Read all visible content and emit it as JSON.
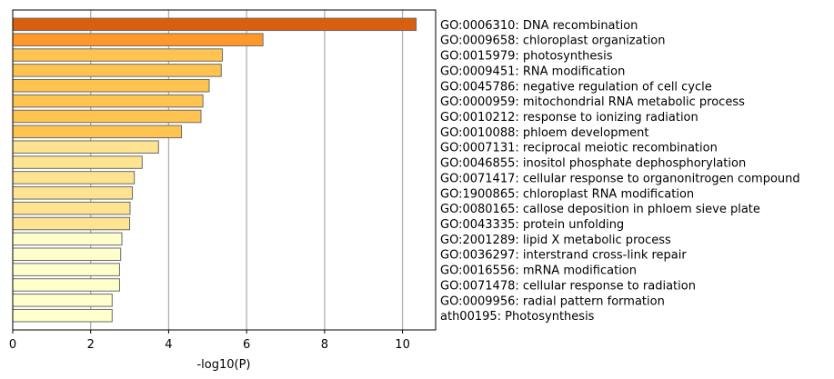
{
  "chart_data": {
    "type": "bar",
    "orientation": "horizontal",
    "title": "",
    "xlabel": "-log10(P)",
    "ylabel": "",
    "xlim": [
      0,
      10.85
    ],
    "xticks": [
      0,
      2,
      4,
      6,
      8,
      10
    ],
    "grid": "vertical",
    "legend": "none",
    "categories": [
      "GO:0006310: DNA recombination",
      "GO:0009658: chloroplast organization",
      "GO:0015979: photosynthesis",
      "GO:0009451: RNA modification",
      "GO:0045786: negative regulation of cell cycle",
      "GO:0000959: mitochondrial RNA metabolic process",
      "GO:0010212: response to ionizing radiation",
      "GO:0010088: phloem development",
      "GO:0007131: reciprocal meiotic recombination",
      "GO:0046855: inositol phosphate dephosphorylation",
      "GO:0071417: cellular response to organonitrogen compound",
      "GO:1900865: chloroplast RNA modification",
      "GO:0080165: callose deposition in phloem sieve plate",
      "GO:0043335: protein unfolding",
      "GO:2001289: lipid X metabolic process",
      "GO:0036297: interstrand cross-link repair",
      "GO:0016556: mRNA modification",
      "GO:0071478: cellular response to radiation",
      "GO:0009956: radial pattern formation",
      "ath00195: Photosynthesis"
    ],
    "values": [
      10.35,
      6.42,
      5.38,
      5.35,
      5.04,
      4.88,
      4.83,
      4.33,
      3.74,
      3.32,
      3.12,
      3.07,
      3.01,
      3.0,
      2.8,
      2.77,
      2.74,
      2.74,
      2.55,
      2.55
    ],
    "colors": [
      "#d95f0e",
      "#fe9929",
      "#fec44f",
      "#fec44f",
      "#fec44f",
      "#fec44f",
      "#fec44f",
      "#fec44f",
      "#fee391",
      "#fee391",
      "#fee391",
      "#fee391",
      "#fee391",
      "#fee391",
      "#ffffcc",
      "#ffffcc",
      "#ffffcc",
      "#ffffcc",
      "#ffffcc",
      "#ffffcc"
    ]
  }
}
